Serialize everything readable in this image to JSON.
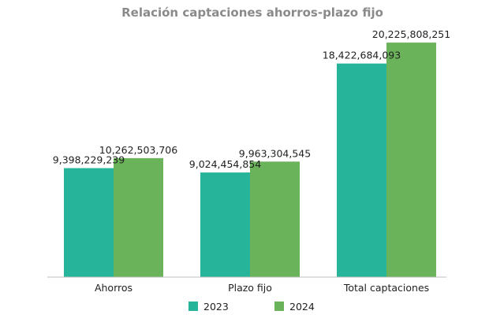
{
  "chart_data": {
    "type": "bar",
    "title": "Relación captaciones ahorros-plazo fijo",
    "categories": [
      "Ahorros",
      "Plazo fijo",
      "Total captaciones"
    ],
    "series": [
      {
        "name": "2023",
        "color": "#26b59a",
        "values": [
          9398229239,
          9024454854,
          18422684093
        ],
        "labels": [
          "9,398,229,239",
          "9,024,454,854",
          "18,422,684,093"
        ]
      },
      {
        "name": "2024",
        "color": "#6ab35a",
        "values": [
          10262503706,
          9963304545,
          20225808251
        ],
        "labels": [
          "10,262,503,706",
          "9,963,304,545",
          "20,225,808,251"
        ]
      }
    ],
    "ylim": [
      0,
      22000000000
    ],
    "grid": false,
    "legend": "bottom",
    "axis_color": "#bfbfbf"
  }
}
